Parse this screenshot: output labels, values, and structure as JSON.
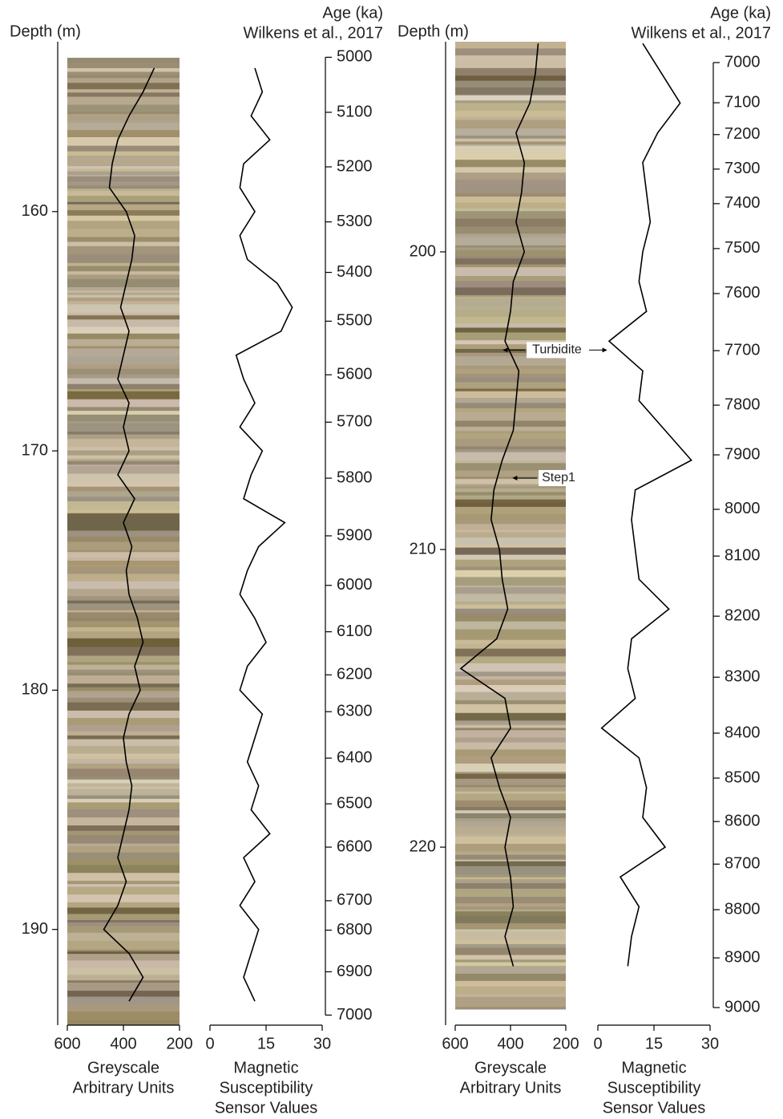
{
  "chart_data": [
    {
      "type": "well-log",
      "depth_label": "Depth (m)",
      "age_title": "Age (ka)",
      "age_source": "Wilkens et al., 2017",
      "ylim": [
        152.9,
        194
      ],
      "yticks": [
        160,
        170,
        180,
        190
      ],
      "depth": [
        154,
        155,
        156,
        157,
        158,
        159,
        160,
        161,
        162,
        163,
        164,
        165,
        166,
        167,
        168,
        169,
        170,
        171,
        172,
        173,
        174,
        175,
        176,
        177,
        178,
        179,
        180,
        181,
        182,
        183,
        184,
        185,
        186,
        187,
        188,
        189,
        190,
        191,
        192,
        193
      ],
      "tracks": [
        {
          "label": [
            "Greyscale",
            "Arbitrary Units"
          ],
          "xlim": [
            600,
            200
          ],
          "xticks": [
            600,
            400,
            200
          ],
          "color": "#000000",
          "values": [
            290,
            330,
            380,
            420,
            440,
            450,
            390,
            360,
            370,
            390,
            410,
            380,
            400,
            420,
            380,
            400,
            380,
            420,
            360,
            400,
            370,
            390,
            380,
            350,
            330,
            360,
            340,
            380,
            400,
            390,
            370,
            380,
            400,
            420,
            390,
            420,
            470,
            380,
            330,
            380
          ]
        },
        {
          "label": [
            "Magnetic",
            "Susceptibility",
            "Sensor Values"
          ],
          "xlim": [
            0,
            30
          ],
          "xticks": [
            0,
            15,
            30
          ],
          "color": "#000000",
          "values": [
            12,
            14,
            11,
            16,
            9,
            8,
            12,
            8,
            10,
            18,
            22,
            19,
            7,
            9,
            12,
            8,
            14,
            11,
            9,
            20,
            13,
            10,
            8,
            12,
            15,
            10,
            8,
            14,
            12,
            10,
            13,
            11,
            16,
            9,
            12,
            8,
            13,
            11,
            9,
            12
          ]
        }
      ],
      "age_ticks": [
        5000,
        5100,
        5200,
        5300,
        5400,
        5500,
        5600,
        5700,
        5800,
        5900,
        6000,
        6100,
        6200,
        6300,
        6400,
        6500,
        6600,
        6700,
        6800,
        6900,
        7000
      ],
      "age_tick_depths": [
        153.55,
        155.85,
        158.13,
        160.43,
        162.54,
        164.58,
        166.82,
        168.8,
        171.14,
        173.55,
        175.62,
        177.56,
        179.36,
        180.9,
        182.84,
        184.75,
        186.56,
        188.8,
        190.03,
        191.77,
        193.58
      ]
    },
    {
      "type": "well-log",
      "depth_label": "Depth (m)",
      "age_title": "Age (ka)",
      "age_source": "Wilkens et al., 2017",
      "ylim": [
        192.94,
        225.98
      ],
      "yticks": [
        200,
        210,
        220
      ],
      "depth": [
        193,
        194,
        195,
        196,
        197,
        198,
        199,
        200,
        201,
        202,
        203,
        204,
        205,
        206,
        207,
        208,
        209,
        210,
        211,
        212,
        213,
        214,
        215,
        216,
        217,
        218,
        219,
        220,
        221,
        222,
        223,
        224
      ],
      "tracks": [
        {
          "label": [
            "Greyscale",
            "Arbitrary Units"
          ],
          "xlim": [
            600,
            200
          ],
          "xticks": [
            600,
            400,
            200
          ],
          "color": "#000000",
          "values": [
            300,
            310,
            330,
            380,
            350,
            360,
            380,
            350,
            390,
            400,
            420,
            370,
            380,
            390,
            430,
            460,
            470,
            440,
            430,
            410,
            450,
            580,
            420,
            400,
            470,
            440,
            400,
            420,
            400,
            390,
            420,
            390
          ]
        },
        {
          "label": [
            "Magnetic",
            "Susceptibility",
            "Sensor Values"
          ],
          "xlim": [
            0,
            30
          ],
          "xticks": [
            0,
            15,
            30
          ],
          "color": "#000000",
          "values": [
            12,
            17,
            22,
            16,
            12,
            13,
            14,
            12,
            11,
            13,
            3,
            12,
            11,
            18,
            25,
            10,
            9,
            10,
            11,
            19,
            9,
            8,
            10,
            1,
            11,
            13,
            12,
            18,
            6,
            11,
            9,
            8
          ]
        }
      ],
      "age_ticks": [
        7000,
        7100,
        7200,
        7300,
        7400,
        7500,
        7600,
        7700,
        7800,
        7900,
        8000,
        8100,
        8200,
        8300,
        8400,
        8500,
        8600,
        8700,
        8800,
        8900,
        9000
      ],
      "age_tick_depths": [
        193.64,
        194.99,
        196.06,
        197.22,
        198.38,
        199.89,
        201.4,
        203.32,
        205.15,
        206.82,
        208.65,
        210.22,
        212.24,
        214.29,
        216.17,
        217.68,
        219.14,
        220.57,
        222.1,
        223.72,
        225.39
      ],
      "annotations": [
        {
          "text": "Turbidite",
          "depth": 203.3
        },
        {
          "text": "Step1",
          "depth": 207.6
        }
      ]
    }
  ]
}
